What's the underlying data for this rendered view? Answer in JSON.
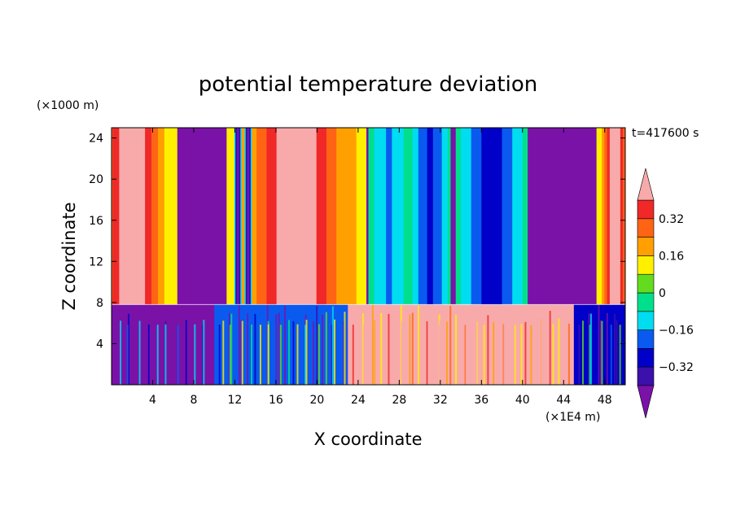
{
  "chart_data": {
    "type": "heatmap",
    "title": "potential temperature deviation",
    "xlabel": "X coordinate",
    "ylabel": "Z coordinate",
    "x_unit": "(×1E4 m)",
    "y_unit": "(×1000 m)",
    "time_label": "t=417600 s",
    "xlim": [
      0,
      50
    ],
    "ylim": [
      0,
      25
    ],
    "x_ticks": [
      4,
      8,
      12,
      16,
      20,
      24,
      28,
      32,
      36,
      40,
      44,
      48
    ],
    "y_ticks": [
      4,
      8,
      12,
      16,
      20,
      24
    ],
    "x_tick_labels": [
      "4",
      "8",
      "12",
      "16",
      "20",
      "24",
      "28",
      "32",
      "36",
      "40",
      "44",
      "48"
    ],
    "y_tick_labels": [
      "4",
      "8",
      "12",
      "16",
      "20",
      "24"
    ],
    "colorbar": {
      "levels": [
        -0.4,
        -0.32,
        -0.24,
        -0.16,
        -0.08,
        0,
        0.08,
        0.16,
        0.24,
        0.32,
        0.4
      ],
      "labeled_levels": [
        {
          "value": -0.32,
          "label": "−0.32"
        },
        {
          "value": -0.16,
          "label": "−0.16"
        },
        {
          "value": 0,
          "label": "0"
        },
        {
          "value": 0.16,
          "label": "0.16"
        },
        {
          "value": 0.32,
          "label": "0.32"
        }
      ],
      "colors": [
        "#7a12a8",
        "#3c10aa",
        "#0000c8",
        "#0a5af0",
        "#00dcf0",
        "#00e08c",
        "#64dc1e",
        "#fff000",
        "#ffa000",
        "#ff6414",
        "#f02828",
        "#f8aaaa"
      ],
      "extend": "both"
    },
    "interface_height": 7.8,
    "upper_plumes": [
      {
        "center": 2,
        "half_width": 4.4,
        "value": 0.45
      },
      {
        "center": 18,
        "half_width": 6.8,
        "value": 0.5
      },
      {
        "center": 12.3,
        "half_width": 0.35,
        "value": -0.45
      },
      {
        "center": 13.3,
        "half_width": 0.35,
        "value": -0.45
      },
      {
        "center": 27,
        "half_width": 2.0,
        "value": -0.16
      },
      {
        "center": 49,
        "half_width": 1.8,
        "value": 0.45
      },
      {
        "center": 37,
        "half_width": 3.5,
        "value": -0.3
      },
      {
        "center": 31,
        "half_width": 2.0,
        "value": -0.25
      }
    ],
    "lower_regions": [
      {
        "x_start": 0,
        "x_end": 10,
        "value": -0.45
      },
      {
        "x_start": 10,
        "x_end": 23,
        "value": -0.2
      },
      {
        "x_start": 23,
        "x_end": 45,
        "value": 0.45
      },
      {
        "x_start": 45,
        "x_end": 50,
        "value": -0.3
      }
    ]
  }
}
